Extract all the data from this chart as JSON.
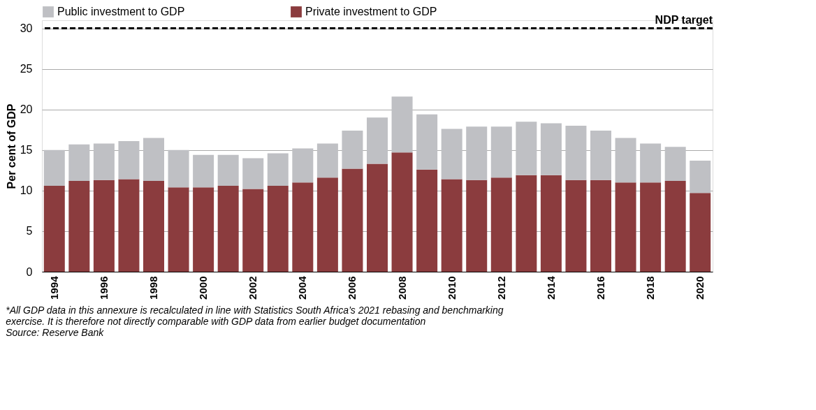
{
  "chart_data": {
    "type": "bar",
    "stacked": true,
    "ylabel": "Per cent of GDP",
    "categories": [
      "1994",
      null,
      "1996",
      null,
      "1998",
      null,
      "2000",
      null,
      "2002",
      null,
      "2004",
      null,
      "2006",
      null,
      "2008",
      null,
      "2010",
      null,
      "2012",
      null,
      "2014",
      null,
      "2016",
      null,
      "2018",
      null,
      "2020"
    ],
    "series": [
      {
        "name": "Private investment to GDP",
        "color": "#8b3c3e",
        "values": [
          10.6,
          11.2,
          11.3,
          11.4,
          11.2,
          10.4,
          10.4,
          10.6,
          10.2,
          10.6,
          11.0,
          11.6,
          12.7,
          13.3,
          14.7,
          12.6,
          11.4,
          11.3,
          11.6,
          11.9,
          11.9,
          11.3,
          11.3,
          11.0,
          11.0,
          11.2,
          9.7
        ]
      },
      {
        "name": "Public investment to GDP",
        "color": "#bfc0c4",
        "values": [
          4.4,
          4.5,
          4.5,
          4.7,
          5.3,
          4.6,
          4.0,
          3.8,
          3.8,
          4.0,
          4.2,
          4.2,
          4.7,
          5.7,
          6.9,
          6.8,
          6.2,
          6.6,
          6.3,
          6.6,
          6.4,
          6.7,
          6.1,
          5.5,
          4.8,
          4.2,
          4.0
        ]
      }
    ],
    "ylim": [
      0,
      31
    ],
    "yticks": [
      0,
      5,
      10,
      15,
      20,
      25,
      30
    ],
    "grid": "y",
    "legend": "top",
    "ref_lines": [
      {
        "axis": "y",
        "value": 30,
        "label": "NDP target",
        "color": "#000000",
        "line_style": "dashed"
      }
    ],
    "annotations": [
      "*All GDP data in this annexure is recalculated in line with Statistics South Africa’s 2021 rebasing and benchmarking exercise. It is therefore not directly comparable with GDP data from earlier budget documentation",
      "Source: Reserve Bank"
    ]
  }
}
